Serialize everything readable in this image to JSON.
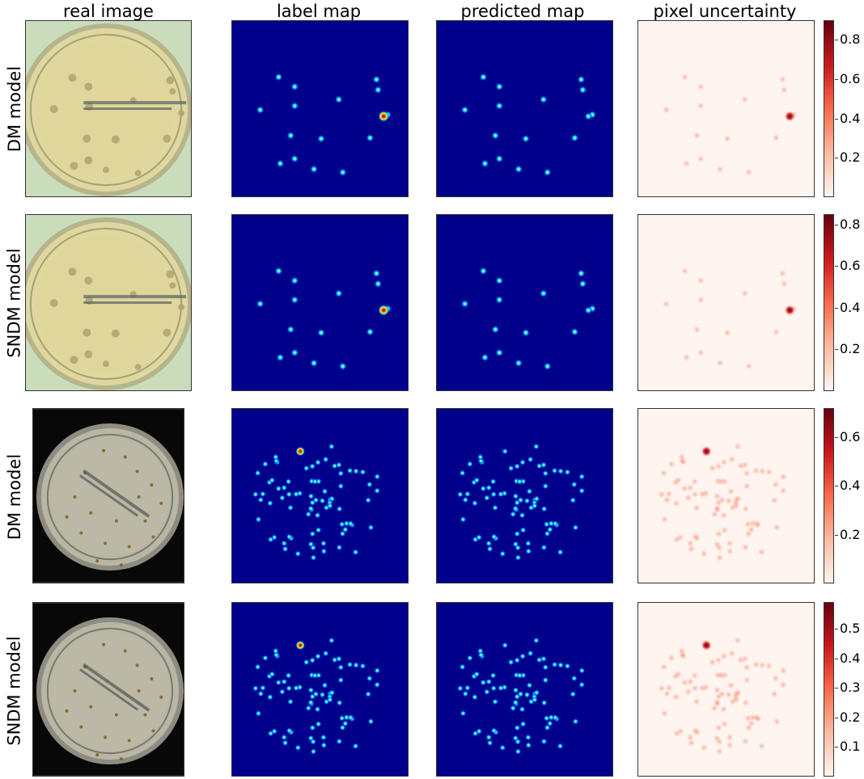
{
  "columns": [
    "real image",
    "label map",
    "predicted map",
    "pixel uncertainty"
  ],
  "rows": [
    {
      "label": "DM model",
      "colorbar": {
        "min": 0.0,
        "max": 0.9,
        "ticks": [
          "0.2",
          "0.4",
          "0.6",
          "0.8"
        ],
        "tick_values": [
          0.2,
          0.4,
          0.6,
          0.8
        ]
      }
    },
    {
      "label": "SNDM model",
      "colorbar": {
        "min": 0.0,
        "max": 0.85,
        "ticks": [
          "0.2",
          "0.4",
          "0.6",
          "0.8"
        ],
        "tick_values": [
          0.2,
          0.4,
          0.6,
          0.8
        ]
      }
    },
    {
      "label": "DM model",
      "colorbar": {
        "min": 0.0,
        "max": 0.72,
        "ticks": [
          "0.2",
          "0.4",
          "0.6"
        ],
        "tick_values": [
          0.2,
          0.4,
          0.6
        ]
      }
    },
    {
      "label": "SNDM model",
      "colorbar": {
        "min": 0.0,
        "max": 0.59,
        "ticks": [
          "0.1",
          "0.2",
          "0.3",
          "0.4",
          "0.5"
        ],
        "tick_values": [
          0.1,
          0.2,
          0.3,
          0.4,
          0.5
        ]
      }
    }
  ],
  "colors": {
    "map_background": "#00008b",
    "uncertainty_background": "#fff5f0",
    "uncertainty_peak": "#67000d"
  }
}
